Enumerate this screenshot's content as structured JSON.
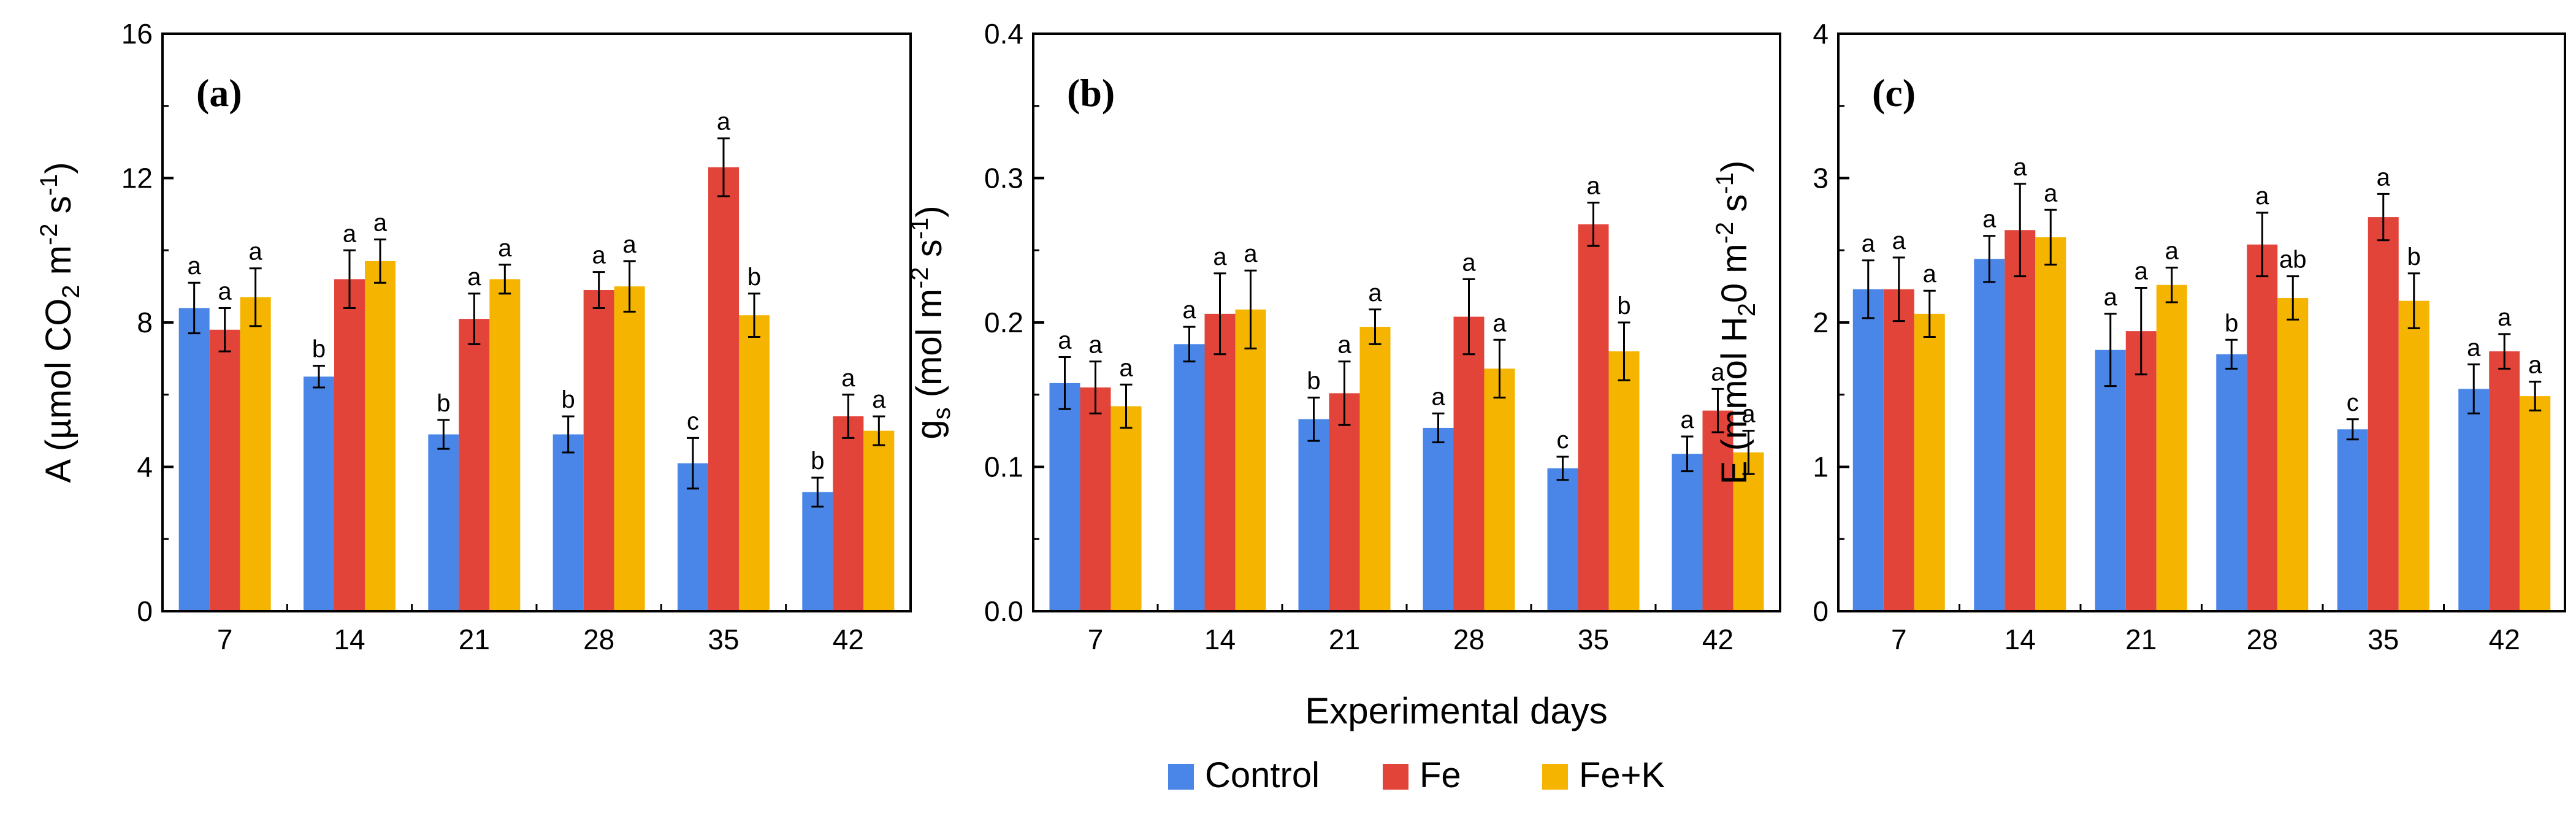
{
  "figure": {
    "x_title": "Experimental days",
    "legend": [
      {
        "name": "Control",
        "color": "#4a86e8"
      },
      {
        "name": "Fe",
        "color": "#e3443a"
      },
      {
        "name": "Fe+K",
        "color": "#f4b400"
      }
    ]
  },
  "chart_data": [
    {
      "type": "bar",
      "panel": "(a)",
      "categories": [
        "7",
        "14",
        "21",
        "28",
        "35",
        "42"
      ],
      "ylabel_parts": [
        "A (µmol CO",
        "2",
        " m",
        "-2",
        " s",
        "-1",
        ")"
      ],
      "ylim": [
        0,
        16
      ],
      "yticks": [
        0,
        4,
        8,
        12,
        16
      ],
      "ytick_labels": [
        "0",
        "4",
        "8",
        "12",
        "16"
      ],
      "series": [
        {
          "name": "Control",
          "values": [
            8.4,
            6.5,
            4.9,
            4.9,
            4.1,
            3.3
          ],
          "errors": [
            0.7,
            0.3,
            0.4,
            0.5,
            0.7,
            0.4
          ],
          "letters": [
            "a",
            "b",
            "b",
            "b",
            "c",
            "b"
          ]
        },
        {
          "name": "Fe",
          "values": [
            7.8,
            9.2,
            8.1,
            8.9,
            12.3,
            5.4
          ],
          "errors": [
            0.6,
            0.8,
            0.7,
            0.5,
            0.8,
            0.6
          ],
          "letters": [
            "a",
            "a",
            "a",
            "a",
            "a",
            "a"
          ]
        },
        {
          "name": "Fe+K",
          "values": [
            8.7,
            9.7,
            9.2,
            9.0,
            8.2,
            5.0
          ],
          "errors": [
            0.8,
            0.6,
            0.4,
            0.7,
            0.6,
            0.4
          ],
          "letters": [
            "a",
            "a",
            "a",
            "a",
            "b",
            "a"
          ]
        }
      ]
    },
    {
      "type": "bar",
      "panel": "(b)",
      "categories": [
        "7",
        "14",
        "21",
        "28",
        "35",
        "42"
      ],
      "ylabel_parts": [
        "g",
        "s",
        " (mol m",
        "-2",
        " s",
        "-1",
        ")"
      ],
      "ylim": [
        0,
        0.4
      ],
      "yticks": [
        0,
        0.1,
        0.2,
        0.3,
        0.4
      ],
      "ytick_labels": [
        "0.0",
        "0.1",
        "0.2",
        "0.3",
        "0.4"
      ],
      "series": [
        {
          "name": "Control",
          "values": [
            0.158,
            0.185,
            0.133,
            0.127,
            0.099,
            0.109
          ],
          "errors": [
            0.018,
            0.012,
            0.015,
            0.01,
            0.008,
            0.012
          ],
          "letters": [
            "a",
            "a",
            "b",
            "a",
            "c",
            "a"
          ]
        },
        {
          "name": "Fe",
          "values": [
            0.155,
            0.206,
            0.151,
            0.204,
            0.268,
            0.139
          ],
          "errors": [
            0.018,
            0.028,
            0.022,
            0.026,
            0.015,
            0.015
          ],
          "letters": [
            "a",
            "a",
            "a",
            "a",
            "a",
            "a"
          ]
        },
        {
          "name": "Fe+K",
          "values": [
            0.142,
            0.209,
            0.197,
            0.168,
            0.18,
            0.11
          ],
          "errors": [
            0.015,
            0.027,
            0.012,
            0.02,
            0.02,
            0.015
          ],
          "letters": [
            "a",
            "a",
            "a",
            "a",
            "b",
            "a"
          ]
        }
      ]
    },
    {
      "type": "bar",
      "panel": "(c)",
      "categories": [
        "7",
        "14",
        "21",
        "28",
        "35",
        "42"
      ],
      "ylabel_parts": [
        "E (mmol H",
        "2",
        "0 m",
        "-2",
        " s",
        "-1",
        ")"
      ],
      "ylim": [
        0,
        4
      ],
      "yticks": [
        0,
        1,
        2,
        3,
        4
      ],
      "ytick_labels": [
        "0",
        "1",
        "2",
        "3",
        "4"
      ],
      "series": [
        {
          "name": "Control",
          "values": [
            2.23,
            2.44,
            1.81,
            1.78,
            1.26,
            1.54
          ],
          "errors": [
            0.2,
            0.16,
            0.25,
            0.1,
            0.07,
            0.17
          ],
          "letters": [
            "a",
            "a",
            "a",
            "b",
            "c",
            "a"
          ]
        },
        {
          "name": "Fe",
          "values": [
            2.23,
            2.64,
            1.94,
            2.54,
            2.73,
            1.8
          ],
          "errors": [
            0.22,
            0.32,
            0.3,
            0.22,
            0.16,
            0.12
          ],
          "letters": [
            "a",
            "a",
            "a",
            "a",
            "a",
            "a"
          ]
        },
        {
          "name": "Fe+K",
          "values": [
            2.06,
            2.59,
            2.26,
            2.17,
            2.15,
            1.49
          ],
          "errors": [
            0.16,
            0.19,
            0.12,
            0.15,
            0.19,
            0.1
          ],
          "letters": [
            "a",
            "a",
            "a",
            "ab",
            "b",
            "a"
          ]
        }
      ]
    }
  ]
}
